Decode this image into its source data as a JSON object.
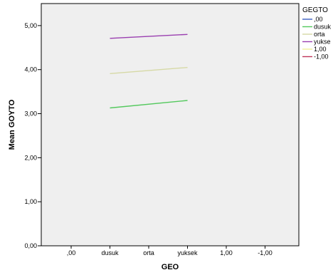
{
  "chart_data": {
    "type": "line",
    "xlabel": "GEO",
    "ylabel": "Mean GOYTO",
    "categories": [
      ",00",
      "dusuk",
      "orta",
      "yuksek",
      "1,00",
      "-1,00"
    ],
    "yticks": [
      "0,00",
      "1,00",
      "2,00",
      "3,00",
      "4,00",
      "5,00"
    ],
    "ylim": [
      0,
      5.5
    ],
    "grid": false,
    "plot_background": "#efefef",
    "legend": {
      "title": "GEGTO",
      "placement": "right",
      "entries": [
        ",00",
        "dusuk",
        "orta",
        "yukse",
        "1,00",
        "-1,00"
      ]
    },
    "series": [
      {
        "name": ",00",
        "color": "#3b5fc0",
        "values": [
          null,
          null,
          null,
          null,
          null,
          null
        ]
      },
      {
        "name": "dusuk",
        "color": "#54c95e",
        "values": [
          null,
          3.13,
          null,
          3.3,
          null,
          null
        ]
      },
      {
        "name": "orta",
        "color": "#d6d9a6",
        "values": [
          null,
          3.91,
          null,
          4.05,
          null,
          null
        ]
      },
      {
        "name": "yukse",
        "color": "#9a3fb0",
        "values": [
          null,
          4.71,
          null,
          4.8,
          null,
          null
        ]
      },
      {
        "name": "1,00",
        "color": "#f0ef9a",
        "values": [
          null,
          null,
          null,
          null,
          null,
          null
        ]
      },
      {
        "name": "-1,00",
        "color": "#c0365a",
        "values": [
          null,
          null,
          null,
          null,
          null,
          null
        ]
      }
    ]
  }
}
